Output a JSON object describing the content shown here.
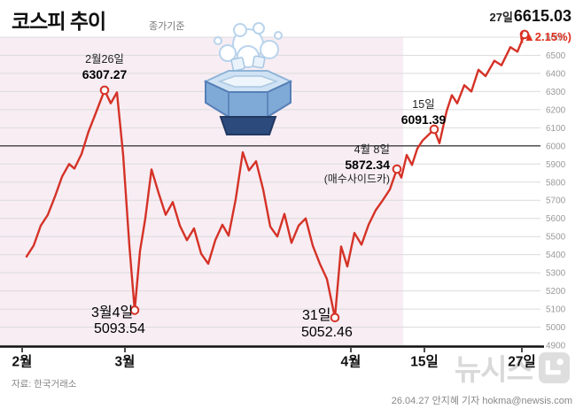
{
  "header": {
    "title": "코스피 추이",
    "subtitle": "종가기준",
    "latest_date": "27일",
    "latest_value": "6615.03",
    "latest_change": "(▲2.15%)"
  },
  "annotations": {
    "peak_date": "2월26일",
    "peak_value": "6307.27",
    "mar4_date": "3월4일",
    "mar4_value": "5093.54",
    "mar31_date": "31일",
    "mar31_value": "5052.46",
    "apr8_date": "4월 8일",
    "apr8_value": "5872.34",
    "apr8_note": "(매수사이드카)",
    "apr15_date": "15일",
    "apr15_value": "6091.39"
  },
  "footer": {
    "source": "자료: 한국거래소",
    "credit": "26.04.27 안지혜 기자 hokma@newsis.com",
    "watermark": "뉴시스"
  },
  "colors": {
    "line": "#d53227",
    "accent_red": "#e0301f",
    "shade": "#f7edf3",
    "grid": "#dcdcdc",
    "highlight_grid": "#4d4d4d"
  },
  "chart_data": {
    "type": "line",
    "title": "코스피 추이 (종가기준)",
    "ylabel": "",
    "xlabel": "",
    "ylim": [
      4900,
      6600
    ],
    "grid": true,
    "legend": false,
    "highlight_line_value": 6000,
    "shade_x": [
      0,
      455
    ],
    "yticks": [
      6600,
      6500,
      6400,
      6300,
      6200,
      6100,
      6000,
      5900,
      5800,
      5700,
      5600,
      5500,
      5400,
      5300,
      5200,
      5100,
      5000,
      4900
    ],
    "xticks": [
      {
        "label": "2월",
        "x": 25
      },
      {
        "label": "3월",
        "x": 141
      },
      {
        "label": "4월",
        "x": 396
      },
      {
        "label": "15일",
        "x": 479
      },
      {
        "label": "27일",
        "x": 589
      }
    ],
    "points": [
      [
        30,
        5390
      ],
      [
        38,
        5450
      ],
      [
        46,
        5560
      ],
      [
        54,
        5620
      ],
      [
        62,
        5720
      ],
      [
        70,
        5830
      ],
      [
        78,
        5900
      ],
      [
        84,
        5875
      ],
      [
        92,
        5955
      ],
      [
        100,
        6080
      ],
      [
        108,
        6180
      ],
      [
        118,
        6307.27
      ],
      [
        125,
        6235
      ],
      [
        132,
        6295
      ],
      [
        139,
        5950
      ],
      [
        146,
        5450
      ],
      [
        152,
        5093.54
      ],
      [
        158,
        5420
      ],
      [
        164,
        5600
      ],
      [
        171,
        5870
      ],
      [
        179,
        5740
      ],
      [
        187,
        5620
      ],
      [
        195,
        5690
      ],
      [
        203,
        5560
      ],
      [
        211,
        5480
      ],
      [
        219,
        5545
      ],
      [
        227,
        5405
      ],
      [
        235,
        5350
      ],
      [
        243,
        5480
      ],
      [
        251,
        5565
      ],
      [
        258,
        5505
      ],
      [
        266,
        5705
      ],
      [
        274,
        5965
      ],
      [
        281,
        5865
      ],
      [
        289,
        5915
      ],
      [
        297,
        5760
      ],
      [
        305,
        5555
      ],
      [
        313,
        5500
      ],
      [
        321,
        5625
      ],
      [
        329,
        5465
      ],
      [
        337,
        5560
      ],
      [
        345,
        5600
      ],
      [
        353,
        5450
      ],
      [
        361,
        5350
      ],
      [
        369,
        5265
      ],
      [
        378,
        5052.46
      ],
      [
        385,
        5445
      ],
      [
        392,
        5335
      ],
      [
        400,
        5520
      ],
      [
        408,
        5455
      ],
      [
        416,
        5565
      ],
      [
        424,
        5645
      ],
      [
        432,
        5700
      ],
      [
        440,
        5760
      ],
      [
        448,
        5872.34
      ],
      [
        453,
        5825
      ],
      [
        459,
        5950
      ],
      [
        465,
        5895
      ],
      [
        471,
        5985
      ],
      [
        477,
        6030
      ],
      [
        490,
        6091.39
      ],
      [
        496,
        6015
      ],
      [
        504,
        6190
      ],
      [
        510,
        6280
      ],
      [
        516,
        6235
      ],
      [
        524,
        6335
      ],
      [
        532,
        6300
      ],
      [
        540,
        6420
      ],
      [
        548,
        6385
      ],
      [
        558,
        6470
      ],
      [
        566,
        6445
      ],
      [
        576,
        6545
      ],
      [
        584,
        6520
      ],
      [
        592,
        6615.03
      ]
    ],
    "markers": [
      [
        118,
        6307.27
      ],
      [
        152,
        5093.54
      ],
      [
        378,
        5052.46
      ],
      [
        448,
        5872.34
      ],
      [
        490,
        6091.39
      ],
      [
        592,
        6615.03
      ]
    ]
  }
}
